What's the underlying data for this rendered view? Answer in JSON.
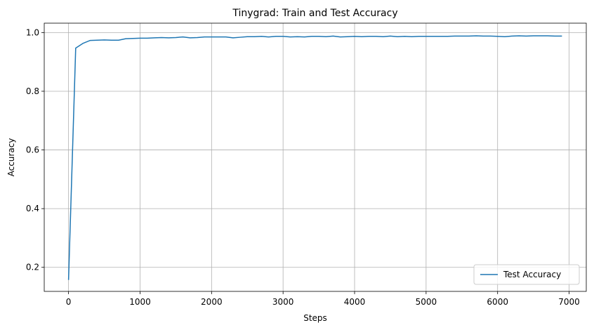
{
  "chart_data": {
    "type": "line",
    "title": "Tinygrad: Train and Test Accuracy",
    "xlabel": "Steps",
    "ylabel": "Accuracy",
    "xlim": [
      -340,
      7240
    ],
    "ylim": [
      0.118,
      1.032
    ],
    "xticks": [
      0,
      1000,
      2000,
      3000,
      4000,
      5000,
      6000,
      7000
    ],
    "yticks": [
      0.2,
      0.4,
      0.6,
      0.8,
      1.0
    ],
    "xtick_labels": [
      "0",
      "1000",
      "2000",
      "3000",
      "4000",
      "5000",
      "6000",
      "7000"
    ],
    "ytick_labels": [
      "0.2",
      "0.4",
      "0.6",
      "0.8",
      "1.0"
    ],
    "grid": true,
    "legend_position": "lower-right",
    "series": [
      {
        "name": "Test Accuracy",
        "color": "#1f77b4",
        "x": [
          0,
          100,
          200,
          300,
          400,
          500,
          600,
          700,
          800,
          900,
          1000,
          1100,
          1200,
          1300,
          1400,
          1500,
          1600,
          1700,
          1800,
          1900,
          2000,
          2100,
          2200,
          2300,
          2400,
          2500,
          2600,
          2700,
          2800,
          2900,
          3000,
          3100,
          3200,
          3300,
          3400,
          3500,
          3600,
          3700,
          3800,
          3900,
          4000,
          4100,
          4200,
          4300,
          4400,
          4500,
          4600,
          4700,
          4800,
          4900,
          5000,
          5100,
          5200,
          5300,
          5400,
          5500,
          5600,
          5700,
          5800,
          5900,
          6000,
          6100,
          6200,
          6300,
          6400,
          6500,
          6600,
          6700,
          6800,
          6900
        ],
        "y": [
          0.157,
          0.947,
          0.963,
          0.973,
          0.974,
          0.975,
          0.974,
          0.974,
          0.979,
          0.98,
          0.981,
          0.981,
          0.982,
          0.983,
          0.982,
          0.983,
          0.985,
          0.982,
          0.983,
          0.985,
          0.985,
          0.985,
          0.985,
          0.982,
          0.984,
          0.986,
          0.986,
          0.987,
          0.985,
          0.987,
          0.987,
          0.985,
          0.986,
          0.985,
          0.987,
          0.987,
          0.986,
          0.988,
          0.985,
          0.986,
          0.987,
          0.986,
          0.987,
          0.987,
          0.986,
          0.988,
          0.986,
          0.987,
          0.986,
          0.987,
          0.987,
          0.987,
          0.987,
          0.987,
          0.988,
          0.988,
          0.988,
          0.989,
          0.988,
          0.988,
          0.987,
          0.986,
          0.988,
          0.989,
          0.988,
          0.989,
          0.989,
          0.989,
          0.988,
          0.988
        ]
      }
    ]
  }
}
